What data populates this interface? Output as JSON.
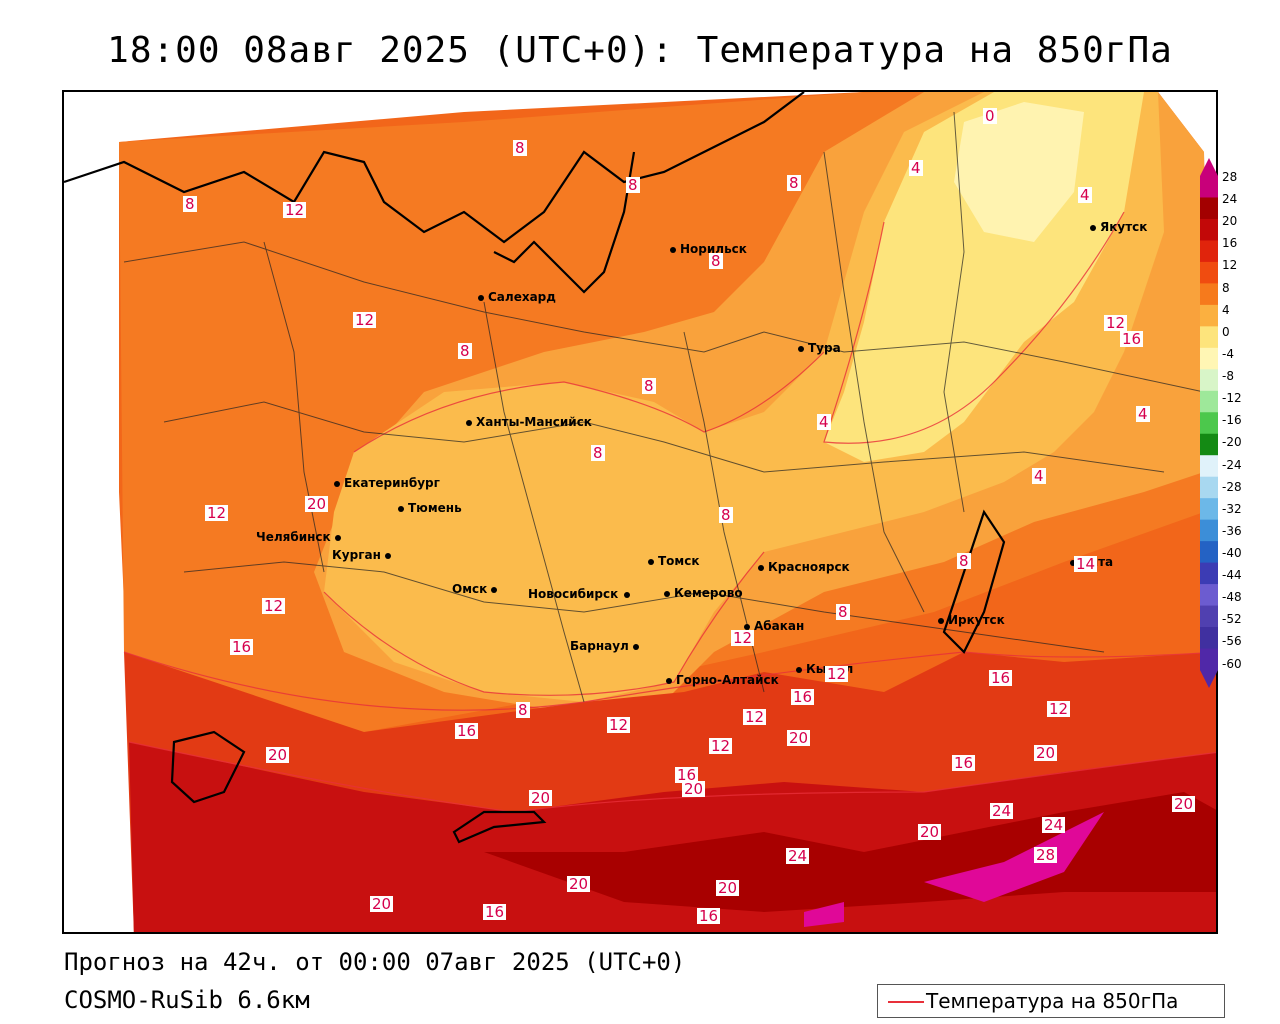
{
  "title": "18:00 08авг 2025 (UTC+0): Температура на 850гПа",
  "footer": {
    "forecast": "Прогноз на 42ч. от 00:00 07авг 2025 (UTC+0)",
    "model": "COSMO-RuSib 6.6км"
  },
  "legend": {
    "label": "Температура на 850гПа",
    "line_color": "#e8303a"
  },
  "colorbar": {
    "ticks": [
      "28",
      "24",
      "20",
      "16",
      "12",
      "8",
      "4",
      "0",
      "-4",
      "-8",
      "-12",
      "-16",
      "-20",
      "-24",
      "-28",
      "-32",
      "-36",
      "-40",
      "-44",
      "-48",
      "-52",
      "-56",
      "-60"
    ],
    "colors": [
      "#c8007a",
      "#a30000",
      "#c20808",
      "#e0240c",
      "#f04c10",
      "#f67a1c",
      "#fbb040",
      "#fde47c",
      "#fff6b4",
      "#d8f5c8",
      "#9ee89a",
      "#4cc84c",
      "#148a14",
      "#e0f2fa",
      "#a8d8f0",
      "#6cb8e8",
      "#3c8ed8",
      "#2462c4",
      "#3c3cb4",
      "#6c5cd0",
      "#5040b0",
      "#4030a0",
      "#5028a8"
    ]
  },
  "cities": [
    {
      "name": "Норильск"
    },
    {
      "name": "Якутск"
    },
    {
      "name": "Салехард"
    },
    {
      "name": "Тура"
    },
    {
      "name": "Ханты-Мансийск"
    },
    {
      "name": "Екатеринбург"
    },
    {
      "name": "Тюмень"
    },
    {
      "name": "Челябинск"
    },
    {
      "name": "Курган"
    },
    {
      "name": "Омск"
    },
    {
      "name": "Новосибирск"
    },
    {
      "name": "Томск"
    },
    {
      "name": "Кемерово"
    },
    {
      "name": "Красноярск"
    },
    {
      "name": "Барнаул"
    },
    {
      "name": "Абакан"
    },
    {
      "name": "Горно-Алтайск"
    },
    {
      "name": "Кызыл"
    },
    {
      "name": "Иркутск"
    },
    {
      "name": "Чита"
    }
  ],
  "contour_labels": [
    "8",
    "8",
    "8",
    "12",
    "12",
    "12",
    "8",
    "8",
    "4",
    "0",
    "4",
    "12",
    "8",
    "4",
    "4",
    "8",
    "8",
    "12",
    "8",
    "8",
    "12",
    "16",
    "16",
    "20",
    "16",
    "20",
    "20",
    "24",
    "24",
    "28",
    "20",
    "16",
    "16",
    "20",
    "20",
    "16",
    "12",
    "12",
    "12",
    "20",
    "16",
    "20",
    "24",
    "20",
    "4",
    "8",
    "8",
    "12",
    "12",
    "16",
    "20",
    "16",
    "20",
    "14"
  ]
}
